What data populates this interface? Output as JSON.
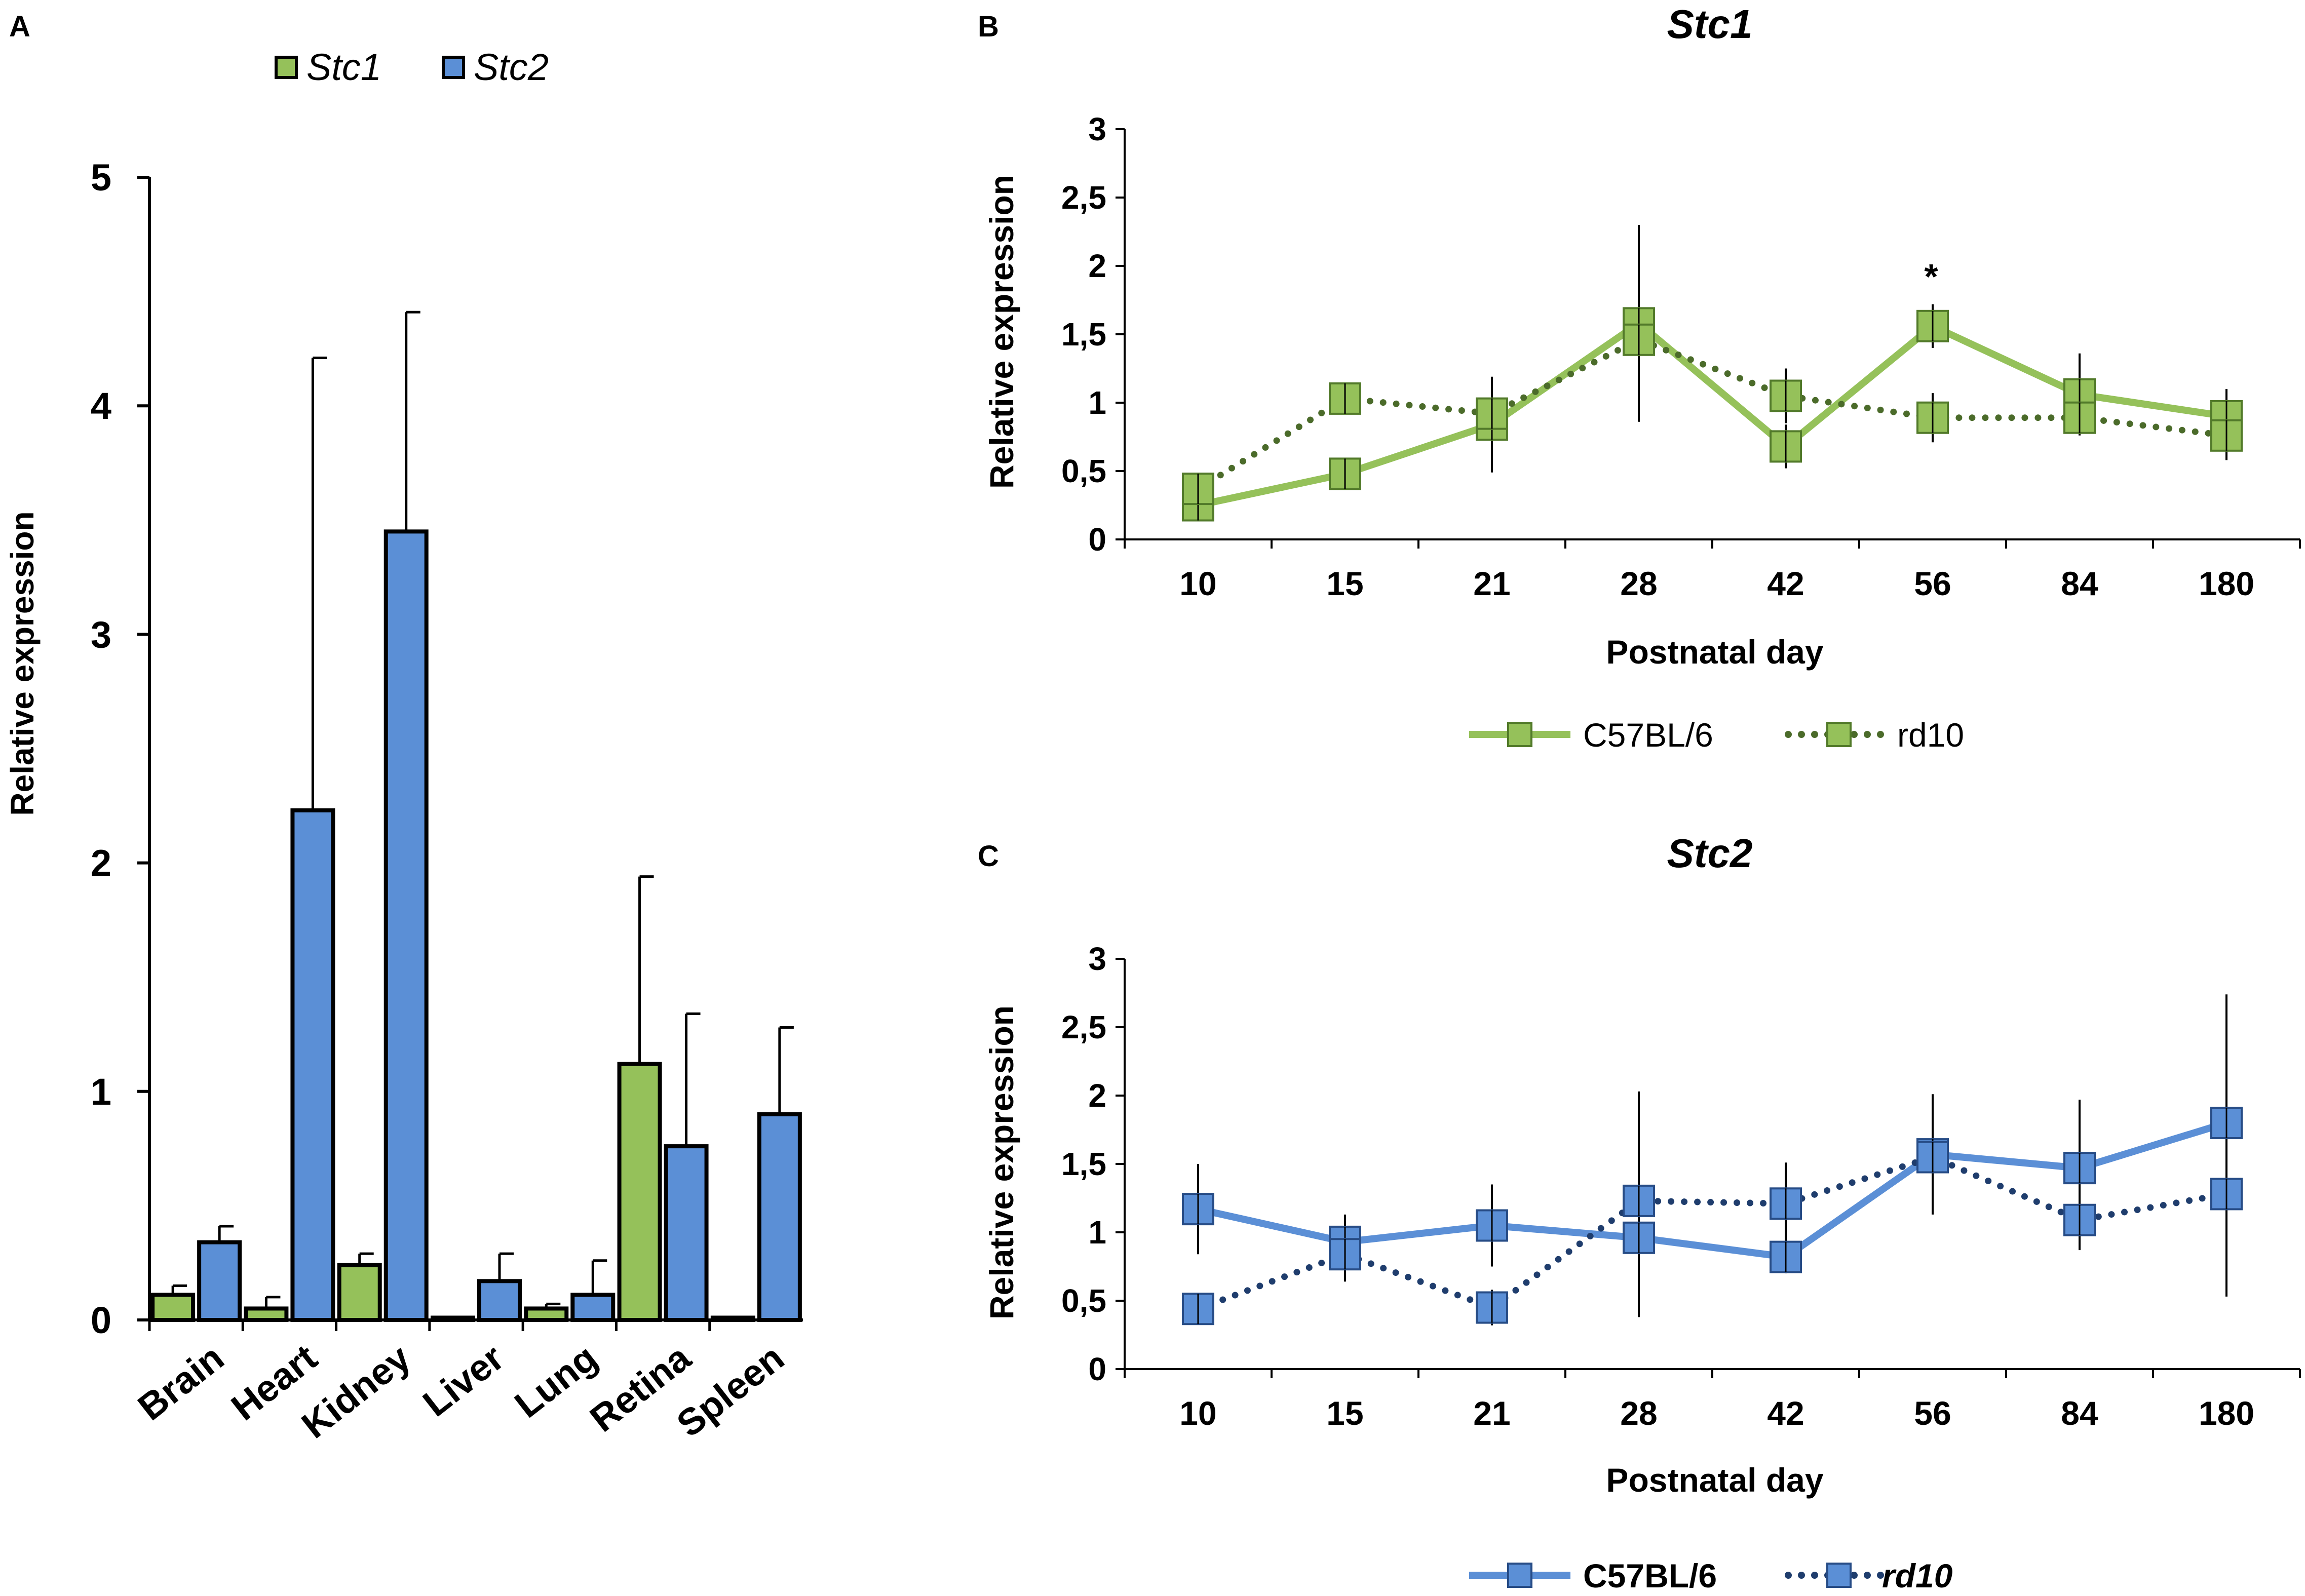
{
  "colors": {
    "green": "#95c15a",
    "green_dark": "#527a2a",
    "blue": "#5b8fd6",
    "blue_dark": "#274c86",
    "dotted_green": "#4b6b2a",
    "dotted_blue": "#1f3d6d",
    "black": "#000000"
  },
  "chart_data": [
    {
      "panel": "A",
      "type": "bar",
      "title": "",
      "xlabel": "",
      "ylabel": "Relative expression",
      "ylim": [
        0,
        5
      ],
      "yticks": [
        "0",
        "1",
        "2",
        "3",
        "4",
        "5"
      ],
      "categories": [
        "Brain",
        "Heart",
        "Kidney",
        "Liver",
        "Lung",
        "Retina",
        "Spleen"
      ],
      "series": [
        {
          "name": "Stc1",
          "color": "#95c15a",
          "values": [
            0.11,
            0.05,
            0.24,
            0.01,
            0.05,
            1.12,
            0.01
          ],
          "errors": [
            0.04,
            0.05,
            0.05,
            0.0,
            0.02,
            0.82,
            0.0
          ]
        },
        {
          "name": "Stc2",
          "color": "#5b8fd6",
          "values": [
            0.34,
            2.23,
            3.45,
            0.17,
            0.11,
            0.76,
            0.9
          ],
          "errors": [
            0.07,
            1.98,
            0.96,
            0.12,
            0.15,
            0.58,
            0.38
          ]
        }
      ],
      "legend_position": "top"
    },
    {
      "panel": "B",
      "type": "line",
      "title": "Stc1",
      "xlabel": "Postnatal day",
      "ylabel": "Relative expression",
      "ylim": [
        0,
        3
      ],
      "yticks": [
        "0",
        "0,5",
        "1",
        "1,5",
        "2",
        "2,5",
        "3"
      ],
      "x": [
        "10",
        "15",
        "21",
        "28",
        "42",
        "56",
        "84",
        "180"
      ],
      "series": [
        {
          "name": "C57BL/6",
          "style": "solid",
          "color": "#95c15a",
          "values": [
            0.25,
            0.48,
            0.84,
            1.58,
            0.68,
            1.56,
            1.06,
            0.9
          ],
          "errors": [
            0.08,
            0.06,
            0.35,
            0.72,
            0.16,
            0.16,
            0.3,
            0.2
          ]
        },
        {
          "name": "rd10",
          "style": "dotted",
          "color": "#95c15a",
          "values": [
            0.37,
            1.03,
            0.92,
            1.46,
            1.05,
            0.89,
            0.89,
            0.76
          ],
          "errors": [
            0.06,
            0.06,
            0.25,
            0.58,
            0.2,
            0.18,
            0.12,
            0.18
          ]
        }
      ],
      "annotations": [
        {
          "x": "56",
          "text": "*"
        }
      ],
      "legend_position": "bottom"
    },
    {
      "panel": "C",
      "type": "line",
      "title": "Stc2",
      "xlabel": "Postnatal day",
      "ylabel": "Relative expression",
      "ylim": [
        0,
        3
      ],
      "yticks": [
        "0",
        "0,5",
        "1",
        "1,5",
        "2",
        "2,5",
        "3"
      ],
      "x": [
        "10",
        "15",
        "21",
        "28",
        "42",
        "56",
        "84",
        "180"
      ],
      "series": [
        {
          "name": "C57BL/6",
          "style": "solid",
          "color": "#5b8fd6",
          "values": [
            1.17,
            0.93,
            1.05,
            0.96,
            0.82,
            1.57,
            1.47,
            1.8
          ],
          "errors": [
            0.33,
            0.2,
            0.3,
            0.58,
            0.12,
            0.44,
            0.5,
            0.94
          ]
        },
        {
          "name": "rd10",
          "style": "dotted",
          "color": "#5b8fd6",
          "values": [
            0.44,
            0.84,
            0.45,
            1.23,
            1.21,
            1.55,
            1.09,
            1.28
          ],
          "errors": [
            0.05,
            0.2,
            0.13,
            0.8,
            0.3,
            0.2,
            0.22,
            0.75
          ]
        }
      ],
      "legend_position": "bottom"
    }
  ],
  "panelA": {
    "label": "A",
    "legend": [
      {
        "name": "Stc1"
      },
      {
        "name": "Stc2"
      }
    ],
    "ylabel": "Relative expression",
    "categories": [
      "Brain",
      "Heart",
      "Kidney",
      "Liver",
      "Lung",
      "Retina",
      "Spleen"
    ]
  },
  "panelB": {
    "label": "B",
    "title": "Stc1",
    "ylabel": "Relative expression",
    "xlabel": "Postnatal day",
    "star": "*",
    "legend": [
      {
        "name": "C57BL/6"
      },
      {
        "name": "rd10"
      }
    ]
  },
  "panelC": {
    "label": "C",
    "title": "Stc2",
    "ylabel": "Relative expression",
    "xlabel": "Postnatal day",
    "legend": [
      {
        "name": "C57BL/6"
      },
      {
        "name": "rd10"
      }
    ]
  }
}
